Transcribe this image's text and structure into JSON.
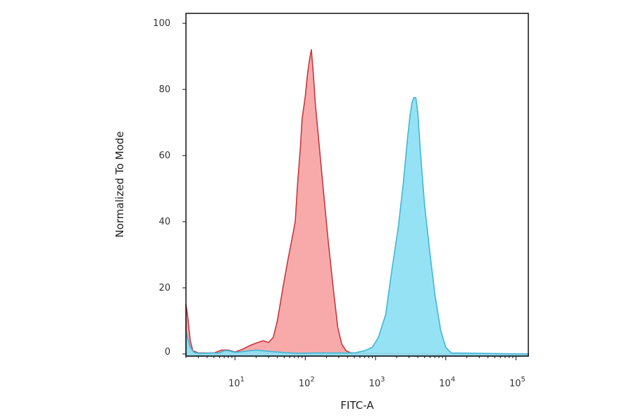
{
  "chart_data": {
    "type": "area",
    "title": "",
    "xlabel": "FITC-A",
    "ylabel": "Normalized To Mode",
    "x_scale": "log",
    "xlim": [
      2,
      150000
    ],
    "ylim": [
      0,
      103
    ],
    "x_ticks": [
      {
        "value": 10,
        "base": "10",
        "exp": "1"
      },
      {
        "value": 100,
        "base": "10",
        "exp": "2"
      },
      {
        "value": 1000,
        "base": "10",
        "exp": "3"
      },
      {
        "value": 10000,
        "base": "10",
        "exp": "4"
      },
      {
        "value": 100000,
        "base": "10",
        "exp": "5"
      }
    ],
    "y_ticks": [
      {
        "value": 0,
        "label": "0"
      },
      {
        "value": 20,
        "label": "20"
      },
      {
        "value": 40,
        "label": "40"
      },
      {
        "value": 60,
        "label": "60"
      },
      {
        "value": 80,
        "label": "80"
      },
      {
        "value": 100,
        "label": "100"
      }
    ],
    "grid": false,
    "legend": "none",
    "series": [
      {
        "fill": "#f7a3a3",
        "stroke": "#c8383e",
        "points": [
          [
            2.0,
            15
          ],
          [
            2.1,
            12
          ],
          [
            2.3,
            4
          ],
          [
            2.5,
            1
          ],
          [
            3,
            0.3
          ],
          [
            5,
            0.3
          ],
          [
            6.5,
            1.2
          ],
          [
            8,
            1.2
          ],
          [
            10,
            0.6
          ],
          [
            13,
            1.5
          ],
          [
            16,
            2.5
          ],
          [
            20,
            3.3
          ],
          [
            25,
            4
          ],
          [
            30,
            3.5
          ],
          [
            35,
            5
          ],
          [
            40,
            10
          ],
          [
            48,
            20
          ],
          [
            56,
            28
          ],
          [
            65,
            35
          ],
          [
            72,
            40
          ],
          [
            78,
            52
          ],
          [
            85,
            62
          ],
          [
            90,
            71
          ],
          [
            100,
            78
          ],
          [
            108,
            85
          ],
          [
            115,
            89
          ],
          [
            122,
            92
          ],
          [
            130,
            85
          ],
          [
            140,
            75
          ],
          [
            155,
            65
          ],
          [
            180,
            50
          ],
          [
            210,
            35
          ],
          [
            250,
            20
          ],
          [
            290,
            8
          ],
          [
            330,
            3
          ],
          [
            380,
            1
          ],
          [
            450,
            0.3
          ],
          [
            10000,
            0
          ],
          [
            150000,
            0
          ]
        ]
      },
      {
        "fill": "#8de0f4",
        "stroke": "#3fb7d8",
        "points": [
          [
            2.0,
            7
          ],
          [
            2.1,
            5
          ],
          [
            2.3,
            2
          ],
          [
            2.6,
            0.5
          ],
          [
            3,
            0.2
          ],
          [
            6,
            0.3
          ],
          [
            7,
            1
          ],
          [
            8,
            1
          ],
          [
            10,
            0.5
          ],
          [
            14,
            0.8
          ],
          [
            20,
            1.2
          ],
          [
            30,
            0.8
          ],
          [
            50,
            0.4
          ],
          [
            80,
            0.2
          ],
          [
            150,
            0.3
          ],
          [
            500,
            0.3
          ],
          [
            700,
            1
          ],
          [
            900,
            2
          ],
          [
            1100,
            5
          ],
          [
            1400,
            12
          ],
          [
            1700,
            25
          ],
          [
            2100,
            38
          ],
          [
            2500,
            52
          ],
          [
            2850,
            65
          ],
          [
            3100,
            72
          ],
          [
            3300,
            76
          ],
          [
            3500,
            77.5
          ],
          [
            3750,
            77.5
          ],
          [
            4000,
            73
          ],
          [
            4400,
            60
          ],
          [
            5000,
            45
          ],
          [
            6000,
            30
          ],
          [
            7000,
            18
          ],
          [
            8500,
            7
          ],
          [
            10000,
            2
          ],
          [
            12000,
            0.3
          ],
          [
            150000,
            0
          ]
        ]
      }
    ]
  }
}
